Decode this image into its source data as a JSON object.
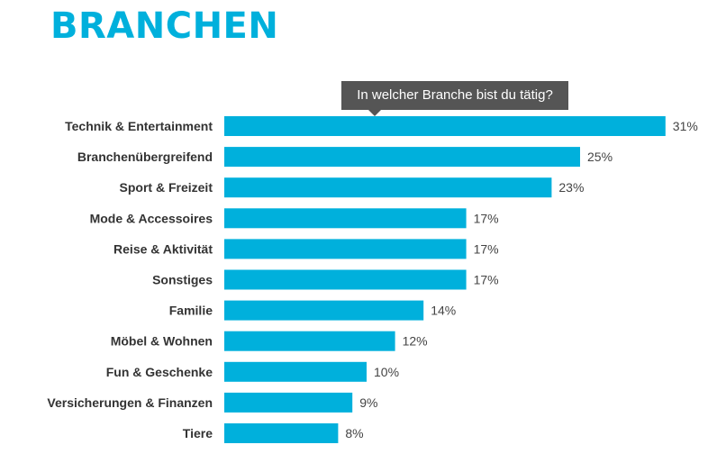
{
  "title": "BRANCHEN",
  "question": "In welcher Branche bist du tätig?",
  "colors": {
    "accent": "#00b0dc",
    "tooltip_bg": "#555555"
  },
  "chart_data": {
    "type": "bar",
    "orientation": "horizontal",
    "categories": [
      "Technik & Entertainment",
      "Branchenübergreifend",
      "Sport & Freizeit",
      "Mode & Accessoires",
      "Reise & Aktivität",
      "Sonstiges",
      "Familie",
      "Möbel & Wohnen",
      "Fun & Geschenke",
      "Versicherungen & Finanzen",
      "Tiere"
    ],
    "values": [
      31,
      25,
      23,
      17,
      17,
      17,
      14,
      12,
      10,
      9,
      8
    ],
    "value_labels": [
      "31%",
      "25%",
      "23%",
      "17%",
      "17%",
      "17%",
      "14%",
      "12%",
      "10%",
      "9%",
      "8%"
    ],
    "unit": "%",
    "grid": false,
    "legend": "none"
  }
}
